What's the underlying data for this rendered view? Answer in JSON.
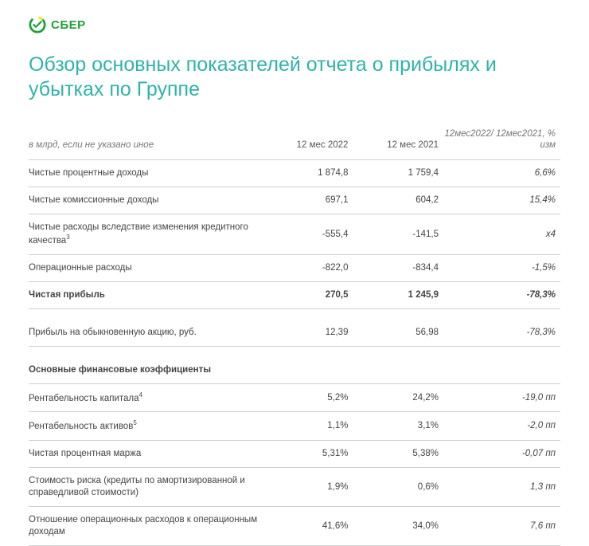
{
  "brand": {
    "name": "СБЕР",
    "logo_color": "#21a038",
    "accent_ring": "#f7e600"
  },
  "title": "Обзор основных показателей отчета о прибылях и убытках по Группе",
  "title_color": "#2fb4a8",
  "table": {
    "unit_note": "в млрд, если не указано иное",
    "columns": [
      "12 мес 2022",
      "12 мес 2021",
      "12мес2022/ 12мес2021, % изм"
    ],
    "rows": [
      {
        "label": "Чистые процентные доходы",
        "v1": "1 874,8",
        "v2": "1 759,4",
        "v3": "6,6%",
        "bold": false
      },
      {
        "label": "Чистые комиссионные доходы",
        "v1": "697,1",
        "v2": "604,2",
        "v3": "15,4%",
        "bold": false
      },
      {
        "label": "Чистые расходы вследствие изменения кредитного качества",
        "sup": "3",
        "v1": "-555,4",
        "v2": "-141,5",
        "v3": "х4",
        "bold": false
      },
      {
        "label": "Операционные расходы",
        "v1": "-822,0",
        "v2": "-834,4",
        "v3": "-1,5%",
        "bold": false
      },
      {
        "label": "Чистая прибыль",
        "v1": "270,5",
        "v2": "1 245,9",
        "v3": "-78,3%",
        "bold": true
      },
      {
        "label": "Прибыль на обыкновенную акцию, руб.",
        "v1": "12,39",
        "v2": "56,98",
        "v3": "-78,3%",
        "bold": false,
        "gap_above": true
      }
    ],
    "section_title": "Основные финансовые коэффициенты",
    "ratio_rows": [
      {
        "label": "Рентабельность капитала",
        "sup": "4",
        "v1": "5,2%",
        "v2": "24,2%",
        "v3": "-19,0 пп"
      },
      {
        "label": "Рентабельность активов",
        "sup": "5",
        "v1": "1,1%",
        "v2": "3,1%",
        "v3": "-2,0 пп"
      },
      {
        "label": "Чистая процентная маржа",
        "v1": "5,31%",
        "v2": "5,38%",
        "v3": "-0,07 пп"
      },
      {
        "label": "Стоимость риска (кредиты по амортизированной и справедливой стоимости)",
        "v1": "1,9%",
        "v2": "0,6%",
        "v3": "1,3 пп"
      },
      {
        "label": "Отношение операционных расходов к операционным доходам",
        "v1": "41,6%",
        "v2": "34,0%",
        "v3": "7,6 пп"
      }
    ],
    "colors": {
      "border": "#cfcfcf",
      "text": "#444444",
      "header_muted": "#777777",
      "section_title": "#21a038"
    }
  }
}
